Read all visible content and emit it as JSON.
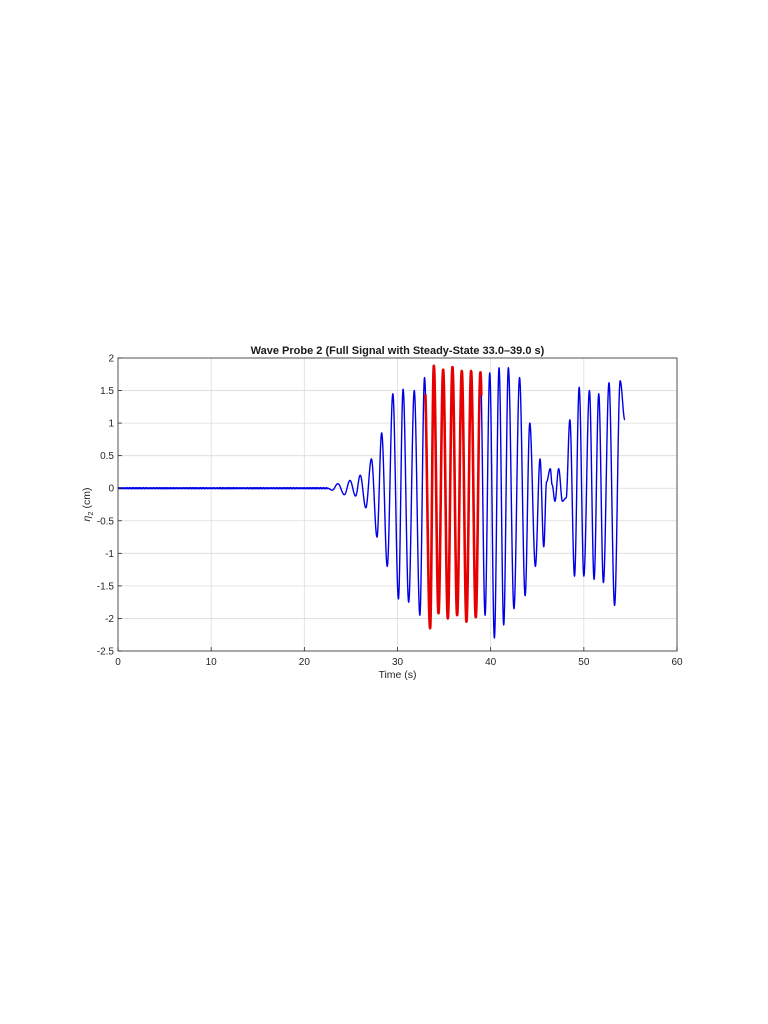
{
  "chart_data": {
    "type": "line",
    "title": "Wave Probe 2 (Full Signal with Steady-State 33.0–39.0 s)",
    "xlabel": "Time (s)",
    "ylabel_symbol": "η",
    "ylabel_subscript": "2",
    "ylabel_unit": "(cm)",
    "xlim": [
      0,
      60
    ],
    "ylim": [
      -2.5,
      2
    ],
    "x_ticks": [
      0,
      10,
      20,
      30,
      40,
      50,
      60
    ],
    "x_tick_labels": [
      "0",
      "10",
      "20",
      "30",
      "40",
      "50",
      "60"
    ],
    "y_ticks": [
      2,
      1.5,
      1,
      0.5,
      0,
      -0.5,
      -1,
      -1.5,
      -2,
      -2.5
    ],
    "y_tick_labels": [
      "2",
      "1.5",
      "1",
      "0.5",
      "0",
      "-0.5",
      "-1",
      "-1.5",
      "-2",
      "-2.5"
    ],
    "grid": true,
    "series": [
      {
        "color": "#0000e6",
        "x_start": 0,
        "x_end": 54.4,
        "flat_until": 22.5,
        "extrema": [
          [
            22.5,
            0.0
          ],
          [
            23.0,
            -0.03
          ],
          [
            23.6,
            0.07
          ],
          [
            24.3,
            -0.1
          ],
          [
            24.9,
            0.12
          ],
          [
            25.5,
            -0.12
          ],
          [
            26.0,
            0.2
          ],
          [
            26.6,
            -0.3
          ],
          [
            27.2,
            0.45
          ],
          [
            27.8,
            -0.75
          ],
          [
            28.3,
            0.85
          ],
          [
            28.9,
            -1.2
          ],
          [
            29.5,
            1.45
          ],
          [
            30.1,
            -1.7
          ],
          [
            30.6,
            1.52
          ],
          [
            31.2,
            -1.75
          ],
          [
            31.8,
            1.5
          ],
          [
            32.4,
            -1.95
          ],
          [
            32.9,
            1.7
          ],
          [
            33.5,
            -2.15
          ],
          [
            33.9,
            1.88
          ],
          [
            34.4,
            -1.92
          ],
          [
            34.9,
            1.82
          ],
          [
            35.4,
            -2.0
          ],
          [
            35.9,
            1.86
          ],
          [
            36.4,
            -1.95
          ],
          [
            36.9,
            1.8
          ],
          [
            37.4,
            -2.05
          ],
          [
            37.9,
            1.8
          ],
          [
            38.4,
            -1.98
          ],
          [
            38.9,
            1.78
          ],
          [
            39.4,
            -1.95
          ],
          [
            39.9,
            1.77
          ],
          [
            40.4,
            -2.3
          ],
          [
            40.9,
            1.85
          ],
          [
            41.4,
            -2.1
          ],
          [
            41.9,
            1.85
          ],
          [
            42.5,
            -1.85
          ],
          [
            43.1,
            1.7
          ],
          [
            43.7,
            -1.65
          ],
          [
            44.2,
            1.0
          ],
          [
            44.8,
            -1.2
          ],
          [
            45.3,
            0.45
          ],
          [
            45.7,
            -0.9
          ],
          [
            46.0,
            0.1
          ],
          [
            46.4,
            0.3
          ],
          [
            46.6,
            0.05
          ],
          [
            46.9,
            -0.2
          ],
          [
            47.3,
            0.3
          ],
          [
            47.7,
            -0.2
          ],
          [
            48.1,
            -0.15
          ],
          [
            48.5,
            1.05
          ],
          [
            49.0,
            -1.35
          ],
          [
            49.5,
            1.55
          ],
          [
            50.0,
            -1.35
          ],
          [
            50.6,
            1.5
          ],
          [
            51.1,
            -1.4
          ],
          [
            51.6,
            1.45
          ],
          [
            52.1,
            -1.45
          ],
          [
            52.7,
            1.62
          ],
          [
            53.3,
            -1.8
          ],
          [
            53.9,
            1.65
          ],
          [
            54.4,
            1.05
          ]
        ]
      },
      {
        "color": "#e60000",
        "x_start": 33.0,
        "x_end": 39.0
      }
    ]
  }
}
